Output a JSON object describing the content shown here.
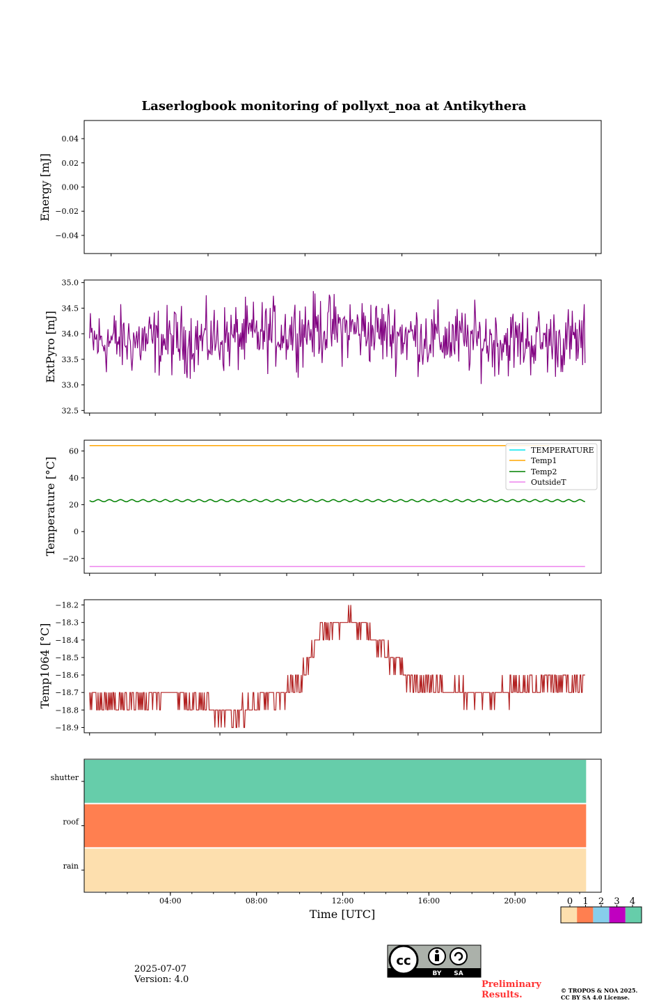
{
  "figure": {
    "title": "Laserlogbook monitoring of pollyxt_noa at Antikythera",
    "date": "2025-07-07",
    "version": "Version: 4.0",
    "preliminary": "Preliminary Results.",
    "copyright_line1": "© TROPOS & NOA 2025.",
    "copyright_line2": "CC BY SA 4.0 License.",
    "license_badge": {
      "cc": "cc",
      "by": "BY",
      "sa": "SA"
    }
  },
  "chart_data": [
    {
      "type": "line",
      "ylabel": "Energy [mJ]",
      "ylim": [
        -0.055,
        0.055
      ],
      "yticks": [
        0.04,
        0.02,
        0.0,
        -0.02,
        -0.04
      ],
      "ytick_labels": [
        "0.04",
        "0.02",
        "0.00",
        "−0.02",
        "−0.04"
      ],
      "series": []
    },
    {
      "type": "line",
      "ylabel": "ExtPyro [mJ]",
      "ylim": [
        32.45,
        35.05
      ],
      "yticks": [
        35.0,
        34.5,
        34.0,
        33.5,
        33.0,
        32.5
      ],
      "ytick_labels": [
        "35.0",
        "34.5",
        "34.0",
        "33.5",
        "33.0",
        "32.5"
      ],
      "x_range_hours": [
        0.25,
        23.25
      ],
      "color": "#800080",
      "mean": 33.85,
      "noise_range": [
        32.57,
        34.95
      ]
    },
    {
      "type": "line",
      "ylabel": "Temperature [°C]",
      "ylim": [
        -31,
        68
      ],
      "yticks": [
        60,
        40,
        20,
        0,
        -20
      ],
      "ytick_labels": [
        "60",
        "40",
        "20",
        "0",
        "−20"
      ],
      "legend_position": "upper right",
      "series": [
        {
          "name": "TEMPERATURE",
          "color": "#00e5ee",
          "values": []
        },
        {
          "name": "Temp1",
          "color": "#ffa500",
          "value": 64,
          "x_range_hours": [
            0.25,
            21.6
          ]
        },
        {
          "name": "Temp2",
          "color": "#008000",
          "mean": 23,
          "amplitude": 0.8,
          "x_range_hours": [
            0.25,
            23.25
          ]
        },
        {
          "name": "OutsideT",
          "color": "#ee82ee",
          "value": -26,
          "x_range_hours": [
            0.25,
            23.25
          ]
        }
      ]
    },
    {
      "type": "line",
      "ylabel": "Temp1064 [°C]",
      "ylim": [
        -18.93,
        -18.17
      ],
      "yticks": [
        -18.2,
        -18.3,
        -18.4,
        -18.5,
        -18.6,
        -18.7,
        -18.8,
        -18.9
      ],
      "ytick_labels": [
        "−18.2",
        "−18.3",
        "−18.4",
        "−18.5",
        "−18.6",
        "−18.7",
        "−18.8",
        "−18.9"
      ],
      "color": "#b22222",
      "trend_hours": [
        0.25,
        2,
        4,
        5.5,
        6.5,
        7.5,
        9,
        10,
        11,
        12.5,
        13.5,
        15,
        17,
        19,
        21,
        23.25
      ],
      "trend_values": [
        -18.75,
        -18.75,
        -18.7,
        -18.75,
        -18.85,
        -18.8,
        -18.72,
        -18.65,
        -18.35,
        -18.28,
        -18.4,
        -18.62,
        -18.7,
        -18.72,
        -18.65,
        -18.65
      ]
    },
    {
      "type": "heatmap",
      "xlabel": "Time [UTC]",
      "xlim_hours": [
        0,
        24
      ],
      "xticks_hours": [
        4,
        8,
        12,
        16,
        20
      ],
      "xtick_labels": [
        "04:00",
        "08:00",
        "12:00",
        "16:00",
        "20:00"
      ],
      "rows": [
        {
          "label": "shutter",
          "value": 4
        },
        {
          "label": "roof",
          "value": 1
        },
        {
          "label": "rain",
          "value": 0
        }
      ],
      "data_end_hours": 23.3,
      "colorbar": {
        "labels": [
          "0",
          "1",
          "2",
          "3",
          "4"
        ],
        "colors": [
          "#fddfae",
          "#ff7f50",
          "#87ceeb",
          "#c000c0",
          "#66cdaa"
        ]
      }
    }
  ]
}
